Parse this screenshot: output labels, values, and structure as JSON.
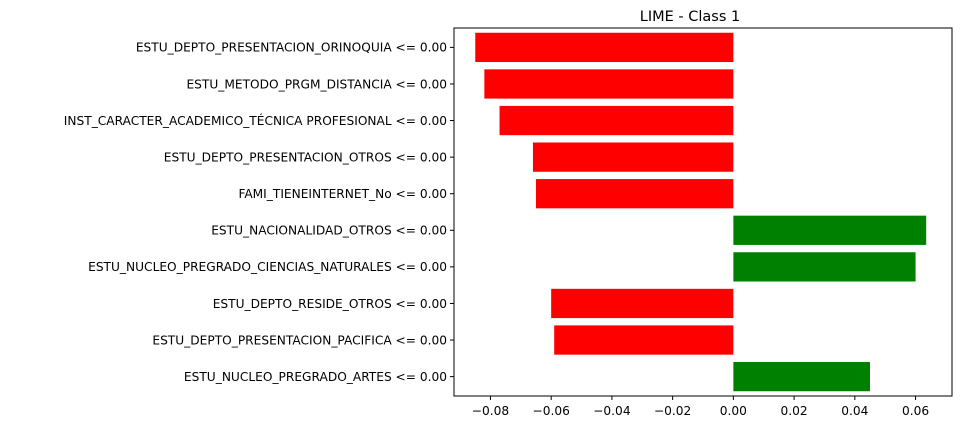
{
  "chart_data": {
    "type": "bar",
    "orientation": "horizontal",
    "title": "LIME - Class 1",
    "xlabel": "",
    "ylabel": "",
    "xlim": [
      -0.092,
      0.072
    ],
    "grid": false,
    "xticks": [
      -0.08,
      -0.06,
      -0.04,
      -0.02,
      0.0,
      0.02,
      0.04,
      0.06
    ],
    "xtick_labels": [
      "−0.08",
      "−0.06",
      "−0.04",
      "−0.02",
      "0.00",
      "0.02",
      "0.04",
      "0.06"
    ],
    "positive_color": "#008000",
    "negative_color": "#ff0000",
    "bars": [
      {
        "label": "ESTU_DEPTO_PRESENTACION_ORINOQUIA <= 0.00",
        "value": -0.085
      },
      {
        "label": "ESTU_METODO_PRGM_DISTANCIA <= 0.00",
        "value": -0.082
      },
      {
        "label": "INST_CARACTER_ACADEMICO_TÉCNICA PROFESIONAL <= 0.00",
        "value": -0.077
      },
      {
        "label": "ESTU_DEPTO_PRESENTACION_OTROS <= 0.00",
        "value": -0.066
      },
      {
        "label": "FAMI_TIENEINTERNET_No <= 0.00",
        "value": -0.065
      },
      {
        "label": "ESTU_NACIONALIDAD_OTROS <= 0.00",
        "value": 0.0635
      },
      {
        "label": "ESTU_NUCLEO_PREGRADO_CIENCIAS_NATURALES <= 0.00",
        "value": 0.06
      },
      {
        "label": "ESTU_DEPTO_RESIDE_OTROS <= 0.00",
        "value": -0.06
      },
      {
        "label": "ESTU_DEPTO_PRESENTACION_PACIFICA <= 0.00",
        "value": -0.059
      },
      {
        "label": "ESTU_NUCLEO_PREGRADO_ARTES <= 0.00",
        "value": 0.045
      }
    ]
  }
}
